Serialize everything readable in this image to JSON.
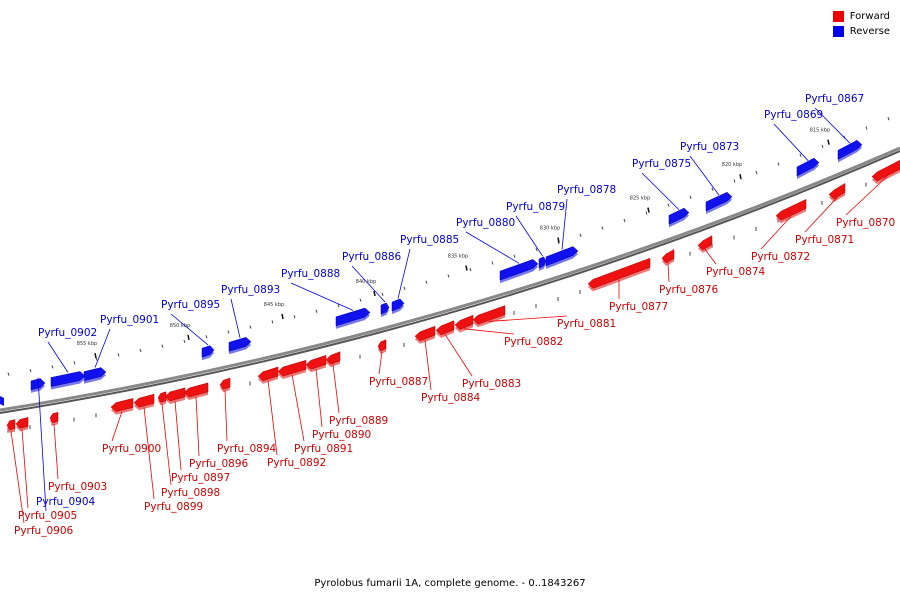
{
  "caption": "Pyrolobus fumarii 1A, complete genome. - 0..1843267",
  "legend": [
    {
      "label": "Forward",
      "color": "#ee0000"
    },
    {
      "label": "Reverse",
      "color": "#0000ee"
    }
  ],
  "colors": {
    "forward": "#ee1111",
    "reverse": "#1111ee",
    "axis": "#888888"
  },
  "scale": {
    "unit": "kbp",
    "ticks": [
      815,
      820,
      825,
      830,
      835,
      840,
      845,
      850,
      855
    ]
  },
  "genes": [
    {
      "name": "Pyrfu_0867",
      "strand": "reverse"
    },
    {
      "name": "Pyrfu_0869",
      "strand": "reverse"
    },
    {
      "name": "Pyrfu_0870",
      "strand": "forward"
    },
    {
      "name": "Pyrfu_0871",
      "strand": "forward"
    },
    {
      "name": "Pyrfu_0872",
      "strand": "forward"
    },
    {
      "name": "Pyrfu_0873",
      "strand": "reverse"
    },
    {
      "name": "Pyrfu_0874",
      "strand": "forward"
    },
    {
      "name": "Pyrfu_0875",
      "strand": "reverse"
    },
    {
      "name": "Pyrfu_0876",
      "strand": "forward"
    },
    {
      "name": "Pyrfu_0877",
      "strand": "forward"
    },
    {
      "name": "Pyrfu_0878",
      "strand": "reverse"
    },
    {
      "name": "Pyrfu_0879",
      "strand": "reverse"
    },
    {
      "name": "Pyrfu_0880",
      "strand": "reverse"
    },
    {
      "name": "Pyrfu_0881",
      "strand": "forward"
    },
    {
      "name": "Pyrfu_0882",
      "strand": "forward"
    },
    {
      "name": "Pyrfu_0883",
      "strand": "forward"
    },
    {
      "name": "Pyrfu_0884",
      "strand": "forward"
    },
    {
      "name": "Pyrfu_0885",
      "strand": "reverse"
    },
    {
      "name": "Pyrfu_0886",
      "strand": "reverse"
    },
    {
      "name": "Pyrfu_0887",
      "strand": "forward"
    },
    {
      "name": "Pyrfu_0888",
      "strand": "reverse"
    },
    {
      "name": "Pyrfu_0889",
      "strand": "forward"
    },
    {
      "name": "Pyrfu_0890",
      "strand": "forward"
    },
    {
      "name": "Pyrfu_0891",
      "strand": "forward"
    },
    {
      "name": "Pyrfu_0892",
      "strand": "forward"
    },
    {
      "name": "Pyrfu_0893",
      "strand": "reverse"
    },
    {
      "name": "Pyrfu_0894",
      "strand": "forward"
    },
    {
      "name": "Pyrfu_0895",
      "strand": "reverse"
    },
    {
      "name": "Pyrfu_0896",
      "strand": "forward"
    },
    {
      "name": "Pyrfu_0897",
      "strand": "forward"
    },
    {
      "name": "Pyrfu_0898",
      "strand": "forward"
    },
    {
      "name": "Pyrfu_0899",
      "strand": "forward"
    },
    {
      "name": "Pyrfu_0900",
      "strand": "forward"
    },
    {
      "name": "Pyrfu_0901",
      "strand": "reverse"
    },
    {
      "name": "Pyrfu_0902",
      "strand": "reverse"
    },
    {
      "name": "Pyrfu_0903",
      "strand": "forward"
    },
    {
      "name": "Pyrfu_0904",
      "strand": "reverse"
    },
    {
      "name": "Pyrfu_0905",
      "strand": "forward"
    },
    {
      "name": "Pyrfu_0906",
      "strand": "forward"
    }
  ]
}
